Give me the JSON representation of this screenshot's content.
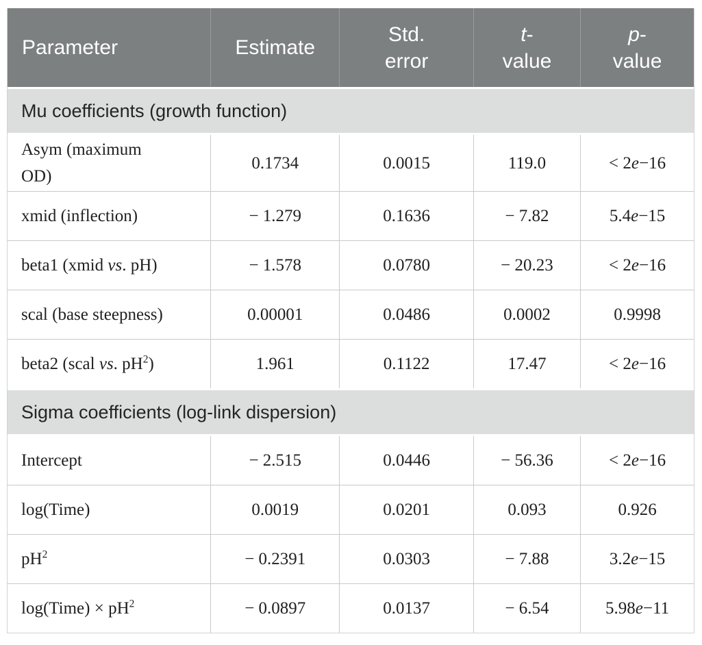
{
  "accent_colors": {
    "header_bg": "#7d8080",
    "header_text": "#ffffff",
    "header_divider": "#9a9d9d",
    "section_bg": "#dcdddd",
    "row_border": "#c9c9c9",
    "data_text": "#1f1f1f"
  },
  "display": {
    "header": {
      "parameter": "Parameter",
      "estimate": "Estimate",
      "std_error": "Std.<br>error",
      "t_value": "<i>t</i>-<br>value",
      "p_value": "<i>p</i>-<br>value"
    },
    "sections": [
      {
        "title": "Mu coefficients (growth function)",
        "rows": [
          {
            "cells": [
              "Asym (maximum<br>OD)",
              "0.1734",
              "0.0015",
              "119.0",
              "&lt; 2<i>e</i>−16"
            ]
          },
          {
            "cells": [
              "xmid (inflection)",
              "− 1.279",
              "0.1636",
              "− 7.82",
              "5.4<i>e</i>−15"
            ]
          },
          {
            "cells": [
              "beta1 (xmid <i>vs</i>. pH)",
              "− 1.578",
              "0.0780",
              "− 20.23",
              "&lt; 2<i>e</i>−16"
            ]
          },
          {
            "cells": [
              "scal (base steepness)",
              "0.00001",
              "0.0486",
              "0.0002",
              "0.9998"
            ]
          },
          {
            "cells": [
              "beta2 (scal <i>vs</i>. pH<sup>2</sup>)",
              "1.961",
              "0.1122",
              "17.47",
              "&lt; 2<i>e</i>−16"
            ]
          }
        ]
      },
      {
        "title": "Sigma coefficients (log-link dispersion)",
        "rows": [
          {
            "cells": [
              "Intercept",
              "− 2.515",
              "0.0446",
              "− 56.36",
              "&lt; 2<i>e</i>−16"
            ]
          },
          {
            "cells": [
              "log(Time)",
              "0.0019",
              "0.0201",
              "0.093",
              "0.926"
            ]
          },
          {
            "cells": [
              "pH<sup>2</sup>",
              "− 0.2391",
              "0.0303",
              "− 7.88",
              "3.2<i>e</i>−15"
            ]
          },
          {
            "cells": [
              "log(Time) × pH<sup>2</sup>",
              "− 0.0897",
              "0.0137",
              "− 6.54",
              "5.98<i>e</i>−11"
            ]
          }
        ]
      }
    ]
  },
  "chart_data": {
    "type": "table",
    "columns": [
      "Parameter",
      "Estimate",
      "Std. error",
      "t-value",
      "p-value"
    ],
    "sections": [
      {
        "title": "Mu coefficients (growth function)",
        "rows": [
          [
            "Asym (maximum OD)",
            "0.1734",
            "0.0015",
            "119.0",
            "< 2e−16"
          ],
          [
            "xmid (inflection)",
            "− 1.279",
            "0.1636",
            "− 7.82",
            "5.4e−15"
          ],
          [
            "beta1 (xmid vs. pH)",
            "− 1.578",
            "0.0780",
            "− 20.23",
            "< 2e−16"
          ],
          [
            "scal (base steepness)",
            "0.00001",
            "0.0486",
            "0.0002",
            "0.9998"
          ],
          [
            "beta2 (scal vs. pH²)",
            "1.961",
            "0.1122",
            "17.47",
            "< 2e−16"
          ]
        ]
      },
      {
        "title": "Sigma coefficients (log-link dispersion)",
        "rows": [
          [
            "Intercept",
            "− 2.515",
            "0.0446",
            "− 56.36",
            "< 2e−16"
          ],
          [
            "log(Time)",
            "0.0019",
            "0.0201",
            "0.093",
            "0.926"
          ],
          [
            "pH²",
            "− 0.2391",
            "0.0303",
            "− 7.88",
            "3.2e−15"
          ],
          [
            "log(Time) × pH²",
            "− 0.0897",
            "0.0137",
            "− 6.54",
            "5.98e−11"
          ]
        ]
      }
    ]
  }
}
